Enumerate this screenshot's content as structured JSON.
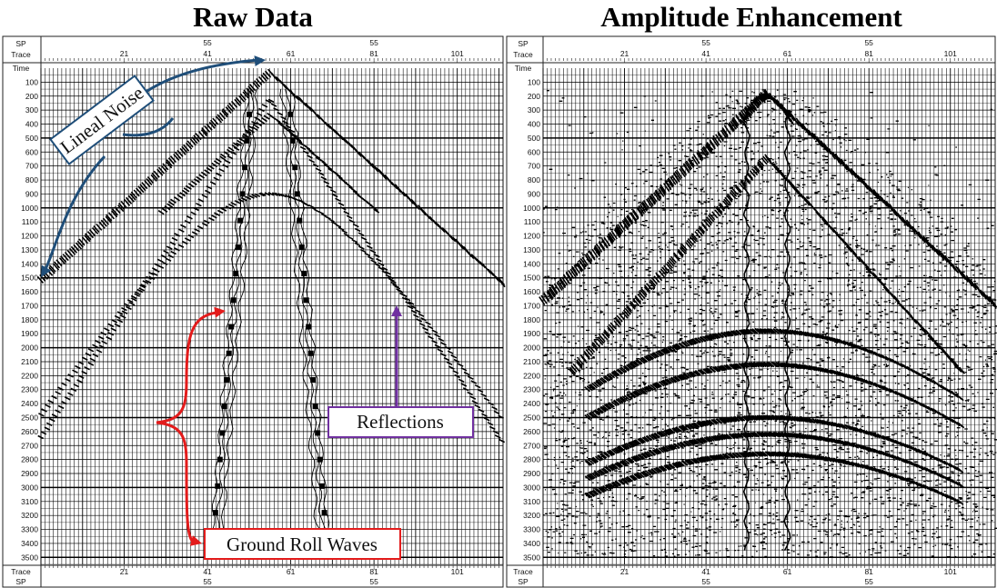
{
  "panels": [
    {
      "title": "Raw Data",
      "header": {
        "sp_label": "SP",
        "trace_label": "Trace",
        "time_label": "Time"
      },
      "footer": {
        "trace_label": "Trace",
        "sp_label": "SP"
      }
    },
    {
      "title": "Amplitude Enhancement",
      "header": {
        "sp_label": "SP",
        "trace_label": "Trace",
        "time_label": "Time"
      },
      "footer": {
        "trace_label": "Trace",
        "sp_label": "SP"
      }
    }
  ],
  "axes": {
    "sp_ticks": [
      {
        "trace": 41,
        "label": "55"
      },
      {
        "trace": 81,
        "label": "55"
      }
    ],
    "trace_ticks": [
      21,
      41,
      61,
      81,
      101
    ],
    "time_ticks": [
      100,
      200,
      300,
      400,
      500,
      600,
      700,
      800,
      900,
      1000,
      1100,
      1200,
      1300,
      1400,
      1500,
      1600,
      1700,
      1800,
      1900,
      2000,
      2100,
      2200,
      2300,
      2400,
      2500,
      2600,
      2700,
      2800,
      2900,
      3000,
      3100,
      3200,
      3300,
      3400,
      3500
    ],
    "trace_range": [
      1,
      112
    ],
    "time_range": [
      0,
      3550
    ]
  },
  "annotations": {
    "lineal_noise": {
      "text": "Lineal Noise",
      "color": "#1f4e79"
    },
    "reflections": {
      "text": "Reflections",
      "color": "#7030a0"
    },
    "ground_roll": {
      "text": "Ground Roll Waves",
      "color": "#e31b1b"
    }
  }
}
